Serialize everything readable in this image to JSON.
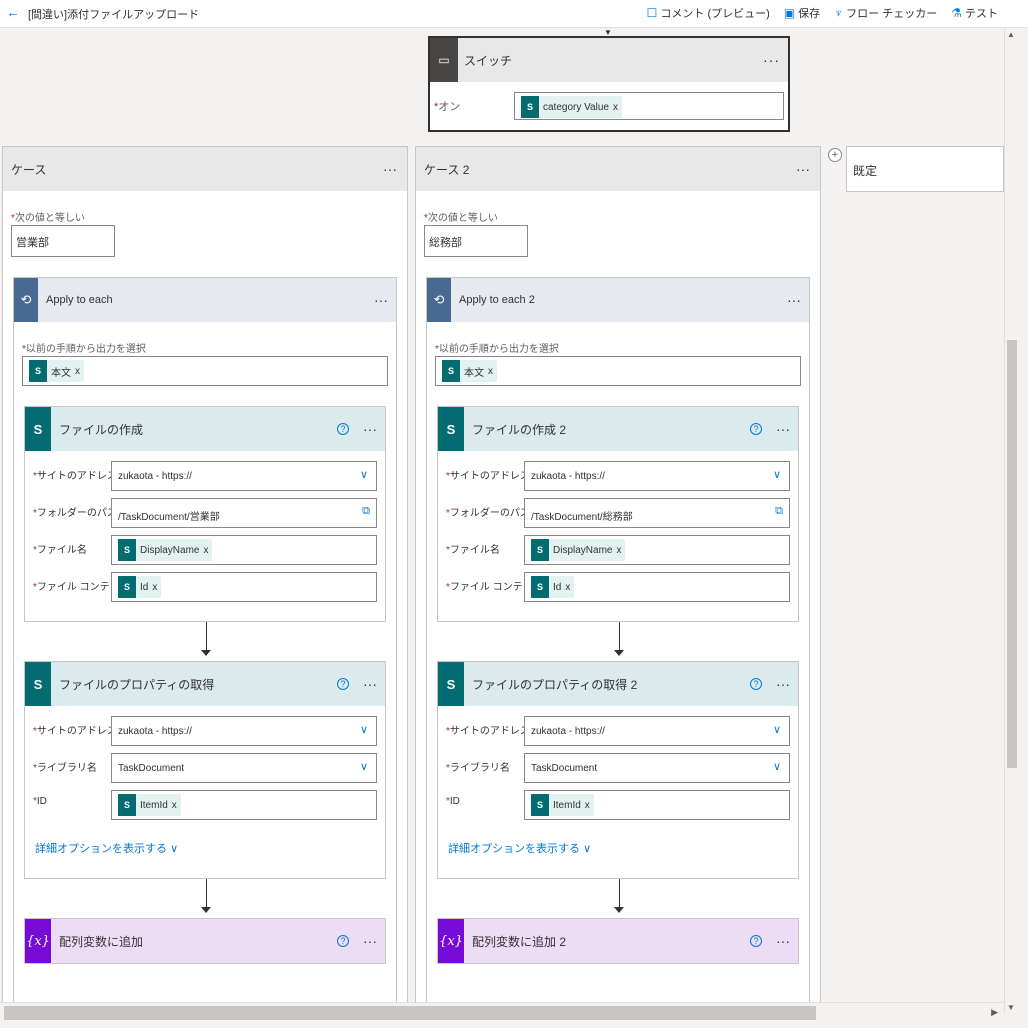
{
  "topbar": {
    "back_glyph": "←",
    "title": "[間違い]添付ファイルアップロード",
    "actions": [
      {
        "icon": "comment-icon",
        "glyph": "☐",
        "label": "コメント (プレビュー)"
      },
      {
        "icon": "save-icon",
        "glyph": "▣",
        "label": "保存"
      },
      {
        "icon": "flow-checker-icon",
        "glyph": "♆",
        "label": "フロー チェッカー"
      },
      {
        "icon": "test-icon",
        "glyph": "⚗",
        "label": "テスト"
      }
    ]
  },
  "switch": {
    "title": "スイッチ",
    "on_label": "オン",
    "on_token": "category Value"
  },
  "cases": [
    {
      "title": "ケース",
      "equals_label": "次の値と等しい",
      "equals_value": "営業部",
      "apply": {
        "title": "Apply to each",
        "select_label": "以前の手順から出力を選択",
        "select_token": "本文"
      },
      "create_file": {
        "title": "ファイルの作成",
        "site_label": "サイトのアドレス",
        "site_value": "zukaota - https://",
        "folder_label": "フォルダーのパス",
        "folder_value": "/TaskDocument/営業部",
        "filename_label": "ファイル名",
        "filename_token": "DisplayName",
        "content_label": "ファイル コンテンツ",
        "content_token": "Id"
      },
      "get_props": {
        "title": "ファイルのプロパティの取得",
        "site_label": "サイトのアドレス",
        "site_value": "zukaota - https://",
        "library_label": "ライブラリ名",
        "library_value": "TaskDocument",
        "id_label": "ID",
        "id_token": "ItemId",
        "advanced": "詳細オプションを表示する"
      },
      "append": {
        "title": "配列変数に追加"
      }
    },
    {
      "title": "ケース 2",
      "equals_label": "次の値と等しい",
      "equals_value": "総務部",
      "apply": {
        "title": "Apply to each 2",
        "select_label": "以前の手順から出力を選択",
        "select_token": "本文"
      },
      "create_file": {
        "title": "ファイルの作成 2",
        "site_label": "サイトのアドレス",
        "site_value": "zukaota - https://",
        "folder_label": "フォルダーのパス",
        "folder_value": "/TaskDocument/総務部",
        "filename_label": "ファイル名",
        "filename_token": "DisplayName",
        "content_label": "ファイル コンテンツ",
        "content_token": "Id"
      },
      "get_props": {
        "title": "ファイルのプロパティの取得 2",
        "site_label": "サイトのアドレス",
        "site_value": "zukaota - https://",
        "library_label": "ライブラリ名",
        "library_value": "TaskDocument",
        "id_label": "ID",
        "id_token": "ItemId",
        "advanced": "詳細オプションを表示する"
      },
      "append": {
        "title": "配列変数に追加 2"
      }
    }
  ],
  "default_case": {
    "title": "既定"
  },
  "ui": {
    "required_mark": "*",
    "more_glyph": "···",
    "help_glyph": "?",
    "token_remove": "x",
    "chevron": "∨",
    "sp_glyph": "S",
    "var_glyph": "{x}",
    "loop_glyph": "⟲",
    "switch_glyph": "▭",
    "add_glyph": "+"
  }
}
